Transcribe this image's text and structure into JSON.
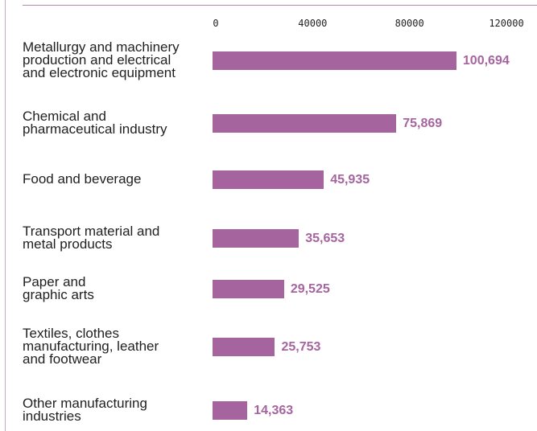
{
  "colors": {
    "bar": "#a6649f",
    "value_label": "#a6649f",
    "rule": "#b58aa8"
  },
  "chart_data": {
    "type": "bar",
    "orientation": "horizontal",
    "title": "",
    "xlabel": "",
    "ylabel": "",
    "xlim": [
      0,
      120000
    ],
    "ticks": [
      "0",
      "40000",
      "80000",
      "120000"
    ],
    "tick_values": [
      0,
      40000,
      80000,
      120000
    ],
    "grid": false,
    "categories": [
      "Metallurgy and machinery\nproduction and electrical\nand electronic equipment",
      "Chemical and\npharmaceutical industry",
      "Food and beverage",
      "Transport material and\nmetal products",
      "Paper and\ngraphic arts",
      "Textiles, clothes\nmanufacturing, leather\nand footwear",
      "Other manufacturing\nindustries"
    ],
    "values": [
      100694,
      75869,
      45935,
      35653,
      29525,
      25753,
      14363
    ],
    "value_labels": [
      "100,694",
      "75,869",
      "45,935",
      "35,653",
      "29,525",
      "25,753",
      "14,363"
    ]
  }
}
